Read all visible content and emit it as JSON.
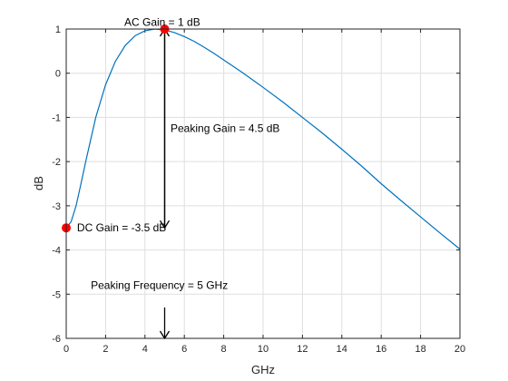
{
  "chart_data": {
    "type": "line",
    "title": "",
    "xlabel": "GHz",
    "ylabel": "dB",
    "xlim": [
      0,
      20
    ],
    "ylim": [
      -6,
      1
    ],
    "xticks": [
      0,
      2,
      4,
      6,
      8,
      10,
      12,
      14,
      16,
      18,
      20
    ],
    "yticks": [
      -6,
      -5,
      -4,
      -3,
      -2,
      -1,
      0,
      1
    ],
    "grid": true,
    "series": [
      {
        "color": "#0072BD",
        "x": [
          0,
          0.25,
          0.5,
          0.75,
          1,
          1.5,
          2,
          2.5,
          3,
          3.5,
          4,
          4.5,
          5,
          5.5,
          6,
          6.5,
          7,
          7.5,
          8,
          8.5,
          9,
          9.5,
          10,
          11,
          12,
          13,
          14,
          15,
          16,
          17,
          18,
          19,
          20
        ],
        "y": [
          -3.5,
          -3.36,
          -3.0,
          -2.5,
          -1.98,
          -1.0,
          -0.26,
          0.27,
          0.63,
          0.85,
          0.96,
          1.0,
          0.98,
          0.92,
          0.83,
          0.72,
          0.59,
          0.45,
          0.3,
          0.15,
          0.0,
          -0.16,
          -0.32,
          -0.65,
          -1.0,
          -1.35,
          -1.72,
          -2.1,
          -2.5,
          -2.88,
          -3.25,
          -3.62,
          -3.98
        ]
      }
    ],
    "points": [
      {
        "x": 0,
        "y": -3.5,
        "color": "#ff0000"
      },
      {
        "x": 5,
        "y": 1,
        "color": "#ff0000"
      }
    ],
    "arrows": [
      {
        "x": 5,
        "y_from": 1,
        "y_to": -3.5
      },
      {
        "x": 5,
        "y_from": -3.5,
        "y_to": 1
      },
      {
        "x": 5,
        "y_from": -5.3,
        "y_to": -6
      }
    ],
    "annotations": [
      {
        "text": "AC Gain = 1 dB",
        "x": 2.95,
        "y": 1.15
      },
      {
        "text": "DC Gain = -3.5 dB",
        "x": 0.55,
        "y": -3.5
      },
      {
        "text": "Peaking Gain = 4.5 dB",
        "x": 5.3,
        "y": -1.25
      },
      {
        "text": "Peaking Frequency = 5 GHz",
        "x": 1.25,
        "y": -4.8
      }
    ]
  }
}
